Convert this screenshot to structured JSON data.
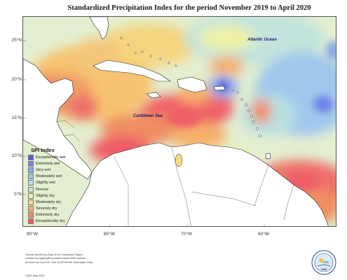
{
  "title": "Standardized Precipitation Index for the period November 2019 to April 2020",
  "labels": {
    "ocean": "Atlantic Ocean",
    "sea": "Caribbean Sea"
  },
  "axes": {
    "lat_ticks": [
      "25°N",
      "20°N",
      "15°N",
      "10°N",
      "5°N"
    ],
    "lon_ticks": [
      "90°W",
      "80°W",
      "70°W",
      "60°W"
    ]
  },
  "legend": {
    "title": "SPI Index",
    "items": [
      {
        "label": "Exceptionally wet",
        "color": "#5b5be0"
      },
      {
        "label": "Extremely wet",
        "color": "#6f84ea"
      },
      {
        "label": "Very wet",
        "color": "#86a8ee"
      },
      {
        "label": "Moderately wet",
        "color": "#9fc7ec"
      },
      {
        "label": "Slightly wet",
        "color": "#b9dfe2"
      },
      {
        "label": "Normal",
        "color": "#c8e8c6"
      },
      {
        "label": "Slightly dry",
        "color": "#eef2a6"
      },
      {
        "label": "Moderately dry",
        "color": "#f7dc83"
      },
      {
        "label": "Severely dry",
        "color": "#f6b16b"
      },
      {
        "label": "Extremely dry",
        "color": "#f08d62"
      },
      {
        "label": "Exceptionally dry",
        "color": "#ef5d68"
      }
    ]
  },
  "credit": {
    "lines": [
      "Climate Monitoring Map of the Caribbean Region.",
      "Created by aggregating station based observations,",
      "provided by CariCOF, with NCEP/NCAR Reanalysis Data."
    ],
    "date": "CIMH May 2020"
  },
  "logo_text": "CIMH"
}
